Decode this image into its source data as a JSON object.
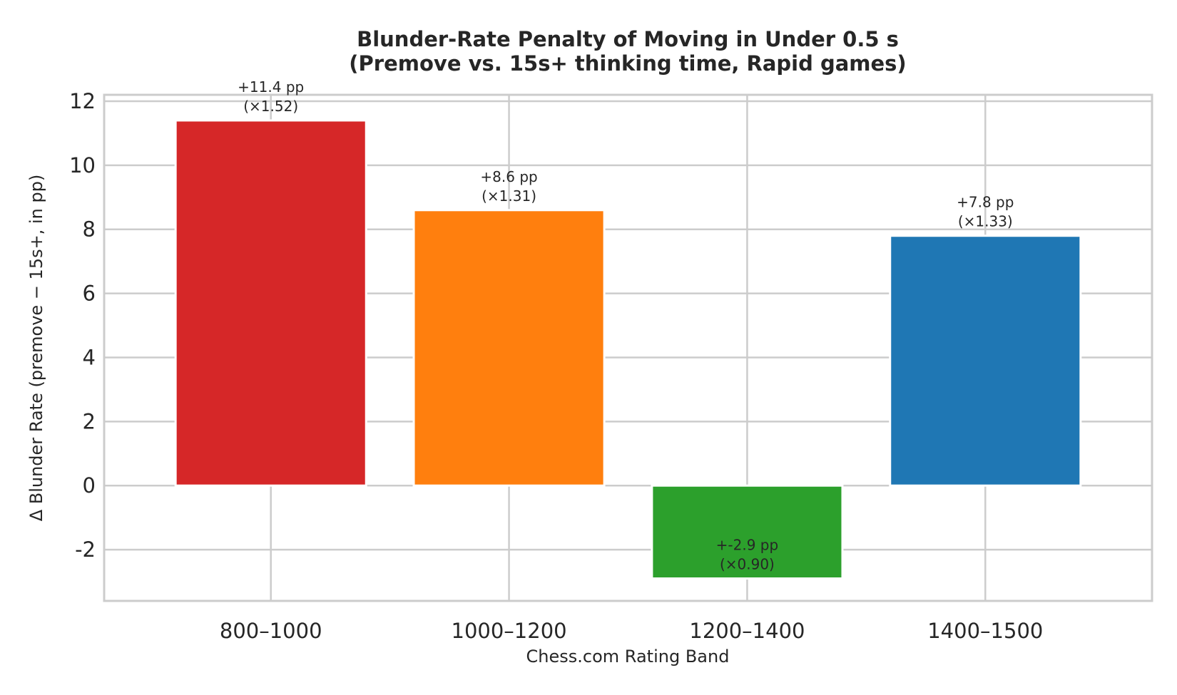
{
  "chart_data": {
    "type": "bar",
    "title": "Blunder-Rate Penalty of Moving in Under 0.5 s",
    "subtitle": "(Premove vs. 15s+ thinking time, Rapid games)",
    "xlabel": "Chess.com Rating Band",
    "ylabel": "Δ Blunder Rate (premove − 15s+, in pp)",
    "categories": [
      "800–1000",
      "1000–1200",
      "1200–1400",
      "1400–1500"
    ],
    "values": [
      11.4,
      8.6,
      -2.9,
      7.8
    ],
    "ratios": [
      1.52,
      1.31,
      0.9,
      1.33
    ],
    "value_labels": [
      "+11.4 pp",
      "+8.6 pp",
      "+-2.9 pp",
      "+7.8 pp"
    ],
    "ratio_labels": [
      "(×1.52)",
      "(×1.31)",
      "(×0.90)",
      "(×1.33)"
    ],
    "colors": [
      "#d62728",
      "#ff7f0e",
      "#2ca02c",
      "#1f77b4"
    ],
    "ylim": [
      -3.6,
      12.2
    ],
    "yticks": [
      -2,
      0,
      2,
      4,
      6,
      8,
      10,
      12
    ],
    "ytick_labels": [
      "-2",
      "0",
      "2",
      "4",
      "6",
      "8",
      "10",
      "12"
    ],
    "grid": true,
    "legend": "none"
  }
}
